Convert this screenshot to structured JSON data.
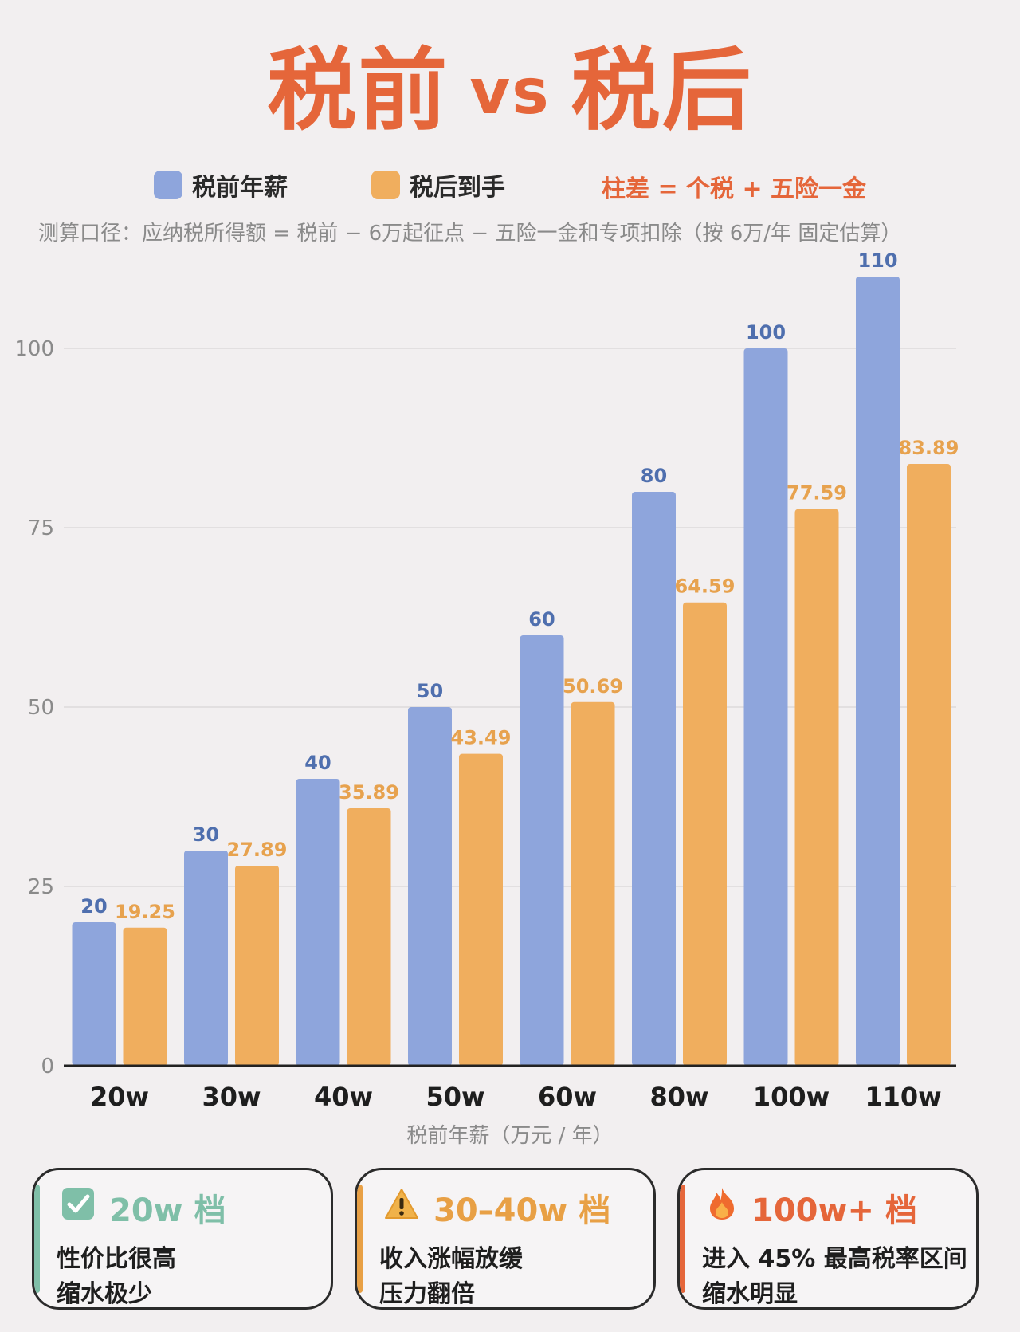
{
  "title": {
    "left": "税前",
    "vs": "vs",
    "right": "税后"
  },
  "legend": {
    "pre_label": "税前年薪",
    "post_label": "税后到手",
    "note": "柱差 = 个税 + 五险一金"
  },
  "caption": "测算口径：应纳税所得额 = 税前 − 6万起征点 − 五险一金和专项扣除（按 6万/年 固定估算）",
  "colors": {
    "pre": "#8ea5dc",
    "post": "#f0ae5e",
    "pre_label": "#4f6fae",
    "post_label": "#e7a24e",
    "accent": "#e5663a",
    "green": "#7fbfa8",
    "amber": "#e8a045",
    "red": "#e5663a"
  },
  "chart_data": {
    "type": "bar",
    "categories": [
      "20w",
      "30w",
      "40w",
      "50w",
      "60w",
      "80w",
      "100w",
      "110w"
    ],
    "series": [
      {
        "name": "税前年薪",
        "values": [
          20,
          30,
          40,
          50,
          60,
          80,
          100,
          110
        ]
      },
      {
        "name": "税后到手",
        "values": [
          19.25,
          27.89,
          35.89,
          43.49,
          50.69,
          64.59,
          77.59,
          83.89
        ]
      }
    ],
    "data_labels": [
      [
        "20",
        "30",
        "40",
        "50",
        "60",
        "80",
        "100",
        "110"
      ],
      [
        "19.25",
        "27.89",
        "35.89",
        "43.49",
        "50.69",
        "64.59",
        "77.59",
        "83.89"
      ]
    ],
    "y_ticks": [
      "0",
      "25",
      "50",
      "75",
      "100"
    ],
    "ylim": [
      0,
      110
    ],
    "xlabel": "税前年薪（万元 / 年）",
    "ylabel": "",
    "grid": true
  },
  "cards": [
    {
      "icon": "check-icon",
      "heading": "20w 档",
      "line1": "性价比很高",
      "line2": "缩水极少",
      "color": "#7fbfa8"
    },
    {
      "icon": "warning-icon",
      "heading": "30–40w 档",
      "line1": "收入涨幅放缓",
      "line2": "压力翻倍",
      "color": "#e8a045"
    },
    {
      "icon": "fire-icon",
      "heading": "100w+ 档",
      "line1": "进入 45% 最高税率区间",
      "line2": "缩水明显",
      "color": "#e5663a"
    }
  ]
}
